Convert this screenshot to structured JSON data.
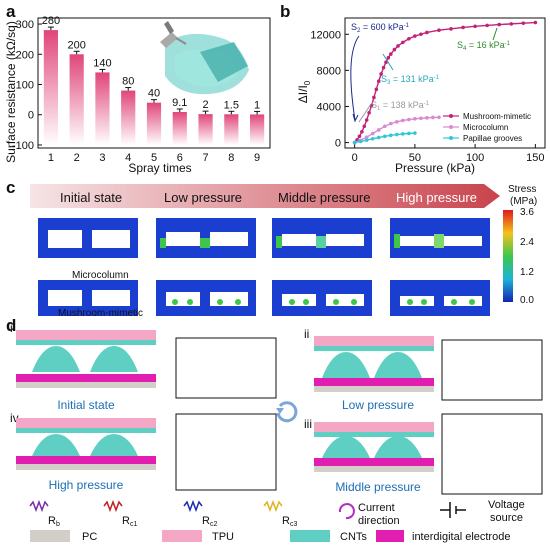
{
  "panels": {
    "a": "a",
    "b": "b",
    "c": "c",
    "d": "d"
  },
  "chart_data": [
    {
      "type": "bar",
      "panel": "a",
      "xlabel": "Spray times",
      "ylabel": "Surface resistance (kΩ/sq)",
      "categories": [
        "1",
        "2",
        "3",
        "4",
        "5",
        "6",
        "7",
        "8",
        "9"
      ],
      "values": [
        280,
        200,
        140,
        80,
        40,
        9.1,
        2,
        1.5,
        1
      ],
      "value_labels": [
        "280",
        "200",
        "140",
        "80",
        "40",
        "9.1",
        "2",
        "1.5",
        "1"
      ],
      "yticks": [
        "-100",
        "0",
        "100",
        "200",
        "300"
      ],
      "ylim": [
        -110,
        320
      ],
      "colors": {
        "bar_top": "#e0457a",
        "bar_bottom": "#ffffff",
        "error": "#111111"
      }
    },
    {
      "type": "scatter",
      "panel": "b",
      "xlabel": "Pressure (kPa)",
      "ylabel": "ΔI/I",
      "ylabel_sub": "0",
      "xticks": [
        "0",
        "50",
        "100",
        "150"
      ],
      "yticks": [
        "0",
        "4000",
        "8000",
        "12000"
      ],
      "xlim": [
        -8,
        158
      ],
      "ylim": [
        -600,
        13800
      ],
      "series": [
        {
          "name": "Mushroom-mimetic",
          "color": "#c0237a",
          "x": [
            0,
            2,
            4,
            6,
            8,
            10,
            12,
            14,
            16,
            18,
            20,
            22,
            24,
            26,
            28,
            30,
            33,
            36,
            40,
            45,
            50,
            55,
            60,
            70,
            80,
            90,
            100,
            110,
            120,
            130,
            140,
            150
          ],
          "y": [
            0,
            300,
            700,
            1200,
            1800,
            2500,
            3300,
            4100,
            5000,
            5900,
            6800,
            7600,
            8300,
            8900,
            9400,
            9800,
            10300,
            10700,
            11100,
            11500,
            11800,
            12000,
            12200,
            12450,
            12600,
            12750,
            12880,
            12980,
            13070,
            13150,
            13230,
            13300
          ]
        },
        {
          "name": "Microcolumn",
          "color": "#d88ad2",
          "x": [
            0,
            5,
            10,
            15,
            20,
            25,
            30,
            35,
            40,
            45,
            50,
            55,
            60,
            65,
            70
          ],
          "y": [
            0,
            250,
            600,
            1000,
            1400,
            1800,
            2100,
            2300,
            2450,
            2550,
            2630,
            2690,
            2740,
            2780,
            2800
          ]
        },
        {
          "name": "Papillae grooves",
          "color": "#2ec8d6",
          "x": [
            0,
            5,
            10,
            15,
            20,
            25,
            30,
            35,
            40,
            45,
            50
          ],
          "y": [
            0,
            120,
            270,
            420,
            560,
            690,
            800,
            890,
            960,
            1010,
            1050
          ]
        }
      ],
      "annotations": {
        "s2": {
          "text": "S",
          "sub": "2",
          "rest": " = 600 kPa",
          "sup": "-1",
          "color": "#1a2a8c"
        },
        "s3": {
          "text": "S",
          "sub": "3",
          "rest": " = 131 kPa",
          "sup": "-1",
          "color": "#2aa7b5"
        },
        "s1": {
          "text": "S",
          "sub": "1",
          "rest": " = 138 kPa",
          "sup": "-1",
          "color": "#9a9a9a"
        },
        "s4": {
          "text": "S",
          "sub": "4",
          "rest": " = 16 kPa",
          "sup": "-1",
          "color": "#2b8a2b"
        }
      }
    }
  ],
  "panel_c": {
    "stages": [
      "Initial state",
      "Low pressure",
      "Middle pressure",
      "High pressure"
    ],
    "row_labels": [
      "Microcolumn",
      "Mushroom-mimetic"
    ],
    "colorbar_title": "Stress",
    "colorbar_unit": "(MPa)",
    "colorbar_ticks": [
      "3.6",
      "2.4",
      "1.2",
      "0.0"
    ]
  },
  "panel_d": {
    "sublabels": [
      "i",
      "ii",
      "iii",
      "iv"
    ],
    "captions": {
      "i": "Initial state",
      "ii": "Low pressure",
      "iii": "Middle pressure",
      "iv": "High pressure"
    },
    "legend": {
      "rb": {
        "main": "R",
        "sub": "b",
        "color": "#7b2aa8"
      },
      "rc1": {
        "main": "R",
        "sub": "c1",
        "color": "#c41e1e"
      },
      "rc2": {
        "main": "R",
        "sub": "c2",
        "color": "#1d2ab0"
      },
      "rc3": {
        "main": "R",
        "sub": "c3",
        "color": "#e0b21c"
      },
      "current": "Current\ndirection",
      "current_line1": "Current",
      "current_line2": "direction",
      "voltage_line1": "Voltage",
      "voltage_line2": "source",
      "materials": [
        {
          "name": "PC",
          "color": "#d2cfc9"
        },
        {
          "name": "TPU",
          "color": "#f3a7c4"
        },
        {
          "name": "CNTs",
          "color": "#5fcfc4"
        },
        {
          "name": "interdigital electrode",
          "color": "#e01fb0"
        }
      ]
    }
  }
}
